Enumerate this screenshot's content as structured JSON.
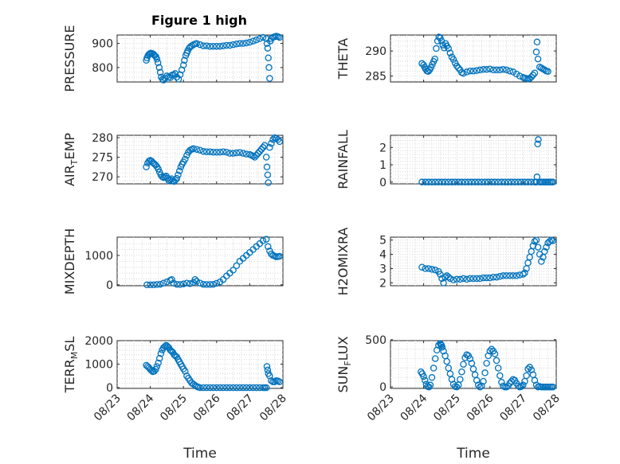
{
  "figure_title": "Figure 1 high",
  "chart_data": [
    {
      "type": "scatter",
      "title": "Figure 1 high",
      "ylabel": "PRESSURE",
      "xlabel": "",
      "xlim": [
        "08/23",
        "08/28"
      ],
      "ylim": [
        740,
        935
      ],
      "yticks": [
        "800",
        "900"
      ],
      "ytick_values": [
        800,
        900
      ],
      "xticks": [
        "08/23",
        "08/24",
        "08/25",
        "08/26",
        "08/27",
        "08/28"
      ],
      "show_xticklabels": false,
      "grid": true,
      "color": "#0072bd",
      "x": [
        23.88,
        23.9,
        23.93,
        23.96,
        23.99,
        24.02,
        24.06,
        24.1,
        24.13,
        24.17,
        24.2,
        24.23,
        24.27,
        24.3,
        24.33,
        24.37,
        24.4,
        24.45,
        24.5,
        24.55,
        24.6,
        24.65,
        24.7,
        24.75,
        24.8,
        24.85,
        24.9,
        24.95,
        25.0,
        25.03,
        25.07,
        25.1,
        25.13,
        25.17,
        25.2,
        25.25,
        25.3,
        25.35,
        25.4,
        25.5,
        25.6,
        25.7,
        25.8,
        25.9,
        26.0,
        26.1,
        26.2,
        26.3,
        26.4,
        26.5,
        26.6,
        26.7,
        26.8,
        26.9,
        27.0,
        27.1,
        27.2,
        27.3,
        27.4,
        27.5,
        27.52,
        27.54,
        27.56,
        27.58,
        27.6,
        27.62,
        27.65,
        27.7,
        27.75,
        27.8,
        27.85,
        27.9
      ],
      "y": [
        830,
        840,
        850,
        855,
        858,
        860,
        858,
        855,
        850,
        845,
        835,
        820,
        800,
        780,
        760,
        752,
        748,
        755,
        765,
        760,
        758,
        768,
        770,
        775,
        760,
        752,
        770,
        790,
        810,
        830,
        850,
        860,
        870,
        880,
        885,
        890,
        895,
        898,
        900,
        895,
        890,
        890,
        888,
        888,
        888,
        888,
        890,
        892,
        892,
        895,
        898,
        900,
        900,
        902,
        905,
        910,
        915,
        920,
        925,
        920,
        900,
        880,
        840,
        800,
        755,
        910,
        920,
        925,
        928,
        930,
        928,
        925
      ]
    },
    {
      "type": "scatter",
      "ylabel": "THETA",
      "xlabel": "",
      "xlim": [
        "08/23",
        "08/28"
      ],
      "ylim": [
        283.8,
        293.2
      ],
      "yticks": [
        "285",
        "290"
      ],
      "ytick_values": [
        285,
        290
      ],
      "xticks": [
        "08/23",
        "08/24",
        "08/25",
        "08/26",
        "08/27",
        "08/28"
      ],
      "show_xticklabels": false,
      "grid": true,
      "color": "#0072bd",
      "x": [
        23.95,
        24.0,
        24.03,
        24.06,
        24.1,
        24.14,
        24.18,
        24.22,
        24.26,
        24.3,
        24.34,
        24.38,
        24.42,
        24.46,
        24.5,
        24.54,
        24.58,
        24.62,
        24.66,
        24.7,
        24.75,
        24.8,
        24.85,
        24.9,
        24.95,
        25.0,
        25.05,
        25.1,
        25.15,
        25.2,
        25.3,
        25.4,
        25.5,
        25.6,
        25.7,
        25.8,
        25.9,
        26.0,
        26.1,
        26.2,
        26.3,
        26.4,
        26.5,
        26.6,
        26.7,
        26.8,
        26.9,
        27.0,
        27.05,
        27.1,
        27.15,
        27.2,
        27.25,
        27.3,
        27.35,
        27.4,
        27.42,
        27.45,
        27.5,
        27.55,
        27.6,
        27.65,
        27.7,
        27.75
      ],
      "y": [
        287.5,
        287.2,
        286.8,
        286.4,
        286.0,
        285.9,
        286.2,
        286.7,
        287.3,
        287.9,
        288.4,
        290.5,
        292.0,
        292.8,
        292.6,
        292.0,
        291.2,
        290.6,
        291.5,
        291.0,
        290.5,
        289.6,
        288.8,
        288.3,
        287.6,
        287.0,
        286.6,
        286.2,
        285.7,
        285.5,
        285.8,
        286.0,
        286.0,
        286.1,
        286.2,
        286.3,
        286.3,
        286.4,
        286.2,
        286.2,
        286.2,
        286.3,
        286.2,
        286.0,
        285.8,
        285.4,
        285.0,
        284.7,
        284.6,
        284.5,
        284.4,
        284.5,
        284.8,
        285.2,
        285.6,
        289.8,
        291.8,
        288.4,
        286.8,
        286.6,
        286.4,
        286.2,
        286.0,
        285.9
      ]
    },
    {
      "type": "scatter",
      "ylabel": "AIR_TEMP",
      "xlabel": "",
      "xlim": [
        "08/23",
        "08/28"
      ],
      "ylim": [
        268.2,
        280.6
      ],
      "yticks": [
        "270",
        "275",
        "280"
      ],
      "ytick_values": [
        270,
        275,
        280
      ],
      "xticks": [
        "08/23",
        "08/24",
        "08/25",
        "08/26",
        "08/27",
        "08/28"
      ],
      "show_xticklabels": false,
      "grid": true,
      "color": "#0072bd",
      "x": [
        23.88,
        23.92,
        23.96,
        24.0,
        24.04,
        24.08,
        24.12,
        24.16,
        24.2,
        24.24,
        24.28,
        24.32,
        24.36,
        24.4,
        24.44,
        24.48,
        24.52,
        24.56,
        24.6,
        24.64,
        24.68,
        24.72,
        24.76,
        24.8,
        24.84,
        24.88,
        24.92,
        24.96,
        25.0,
        25.05,
        25.1,
        25.15,
        25.2,
        25.25,
        25.3,
        25.4,
        25.5,
        25.6,
        25.7,
        25.8,
        25.9,
        26.0,
        26.1,
        26.2,
        26.3,
        26.4,
        26.5,
        26.6,
        26.7,
        26.8,
        26.9,
        27.0,
        27.05,
        27.1,
        27.15,
        27.2,
        27.25,
        27.3,
        27.35,
        27.4,
        27.45,
        27.5,
        27.52,
        27.54,
        27.56,
        27.6,
        27.65,
        27.7,
        27.75,
        27.8,
        27.85,
        27.9
      ],
      "y": [
        272.5,
        273.5,
        274.0,
        274.2,
        274.0,
        273.6,
        273.3,
        273.0,
        272.6,
        272.0,
        271.2,
        270.5,
        270.0,
        269.8,
        270.0,
        270.2,
        269.6,
        269.0,
        269.2,
        269.5,
        269.0,
        268.8,
        269.2,
        269.6,
        270.5,
        271.5,
        272.5,
        273.2,
        273.8,
        274.5,
        275.5,
        276.3,
        276.8,
        277.0,
        277.2,
        277.0,
        276.8,
        276.5,
        276.4,
        276.4,
        276.3,
        276.3,
        276.3,
        276.4,
        276.3,
        276.0,
        276.0,
        276.1,
        276.2,
        276.0,
        275.8,
        275.7,
        275.5,
        275.3,
        275.0,
        275.5,
        276.0,
        276.5,
        277.0,
        277.5,
        278.0,
        275.0,
        272.5,
        270.5,
        268.5,
        277.5,
        278.5,
        279.5,
        280.0,
        279.8,
        279.5,
        279.0
      ]
    },
    {
      "type": "scatter",
      "ylabel": "RAINFALL",
      "xlabel": "",
      "xlim": [
        "08/23",
        "08/28"
      ],
      "ylim": [
        -0.1,
        2.7
      ],
      "yticks": [
        "0",
        "1",
        "2"
      ],
      "ytick_values": [
        0,
        1,
        2
      ],
      "xticks": [
        "08/23",
        "08/24",
        "08/25",
        "08/26",
        "08/27",
        "08/28"
      ],
      "show_xticklabels": false,
      "grid": true,
      "color": "#0072bd",
      "x": [
        23.95,
        24.05,
        24.15,
        24.25,
        24.35,
        24.45,
        24.55,
        24.65,
        24.75,
        24.85,
        24.95,
        25.05,
        25.15,
        25.25,
        25.35,
        25.45,
        25.55,
        25.65,
        25.75,
        25.85,
        25.95,
        26.05,
        26.15,
        26.25,
        26.35,
        26.45,
        26.55,
        26.65,
        26.75,
        26.85,
        26.95,
        27.05,
        27.15,
        27.25,
        27.35,
        27.4,
        27.42,
        27.44,
        27.46,
        27.5,
        27.55,
        27.6,
        27.65,
        27.7,
        27.75,
        27.8,
        27.85,
        27.9
      ],
      "y": [
        0,
        0,
        0,
        0,
        0,
        0,
        0,
        0,
        0,
        0,
        0,
        0,
        0,
        0,
        0,
        0,
        0,
        0,
        0,
        0,
        0,
        0,
        0,
        0,
        0,
        0,
        0,
        0,
        0,
        0,
        0,
        0,
        0,
        0,
        0,
        0,
        0.3,
        2.2,
        2.45,
        0,
        0,
        0,
        0,
        0,
        0,
        0,
        0,
        0
      ]
    },
    {
      "type": "scatter",
      "ylabel": "MIXDEPTH",
      "xlabel": "",
      "xlim": [
        "08/23",
        "08/28"
      ],
      "ylim": [
        -30,
        1620
      ],
      "yticks": [
        "0",
        "1000"
      ],
      "ytick_values": [
        0,
        1000
      ],
      "xticks": [
        "08/23",
        "08/24",
        "08/25",
        "08/26",
        "08/27",
        "08/28"
      ],
      "show_xticklabels": false,
      "grid": true,
      "color": "#0072bd",
      "x": [
        23.9,
        24.0,
        24.1,
        24.2,
        24.3,
        24.4,
        24.5,
        24.6,
        24.65,
        24.7,
        24.8,
        24.9,
        25.0,
        25.1,
        25.2,
        25.3,
        25.35,
        25.4,
        25.5,
        25.6,
        25.7,
        25.8,
        25.9,
        26.0,
        26.1,
        26.2,
        26.3,
        26.4,
        26.5,
        26.6,
        26.7,
        26.8,
        26.9,
        27.0,
        27.1,
        27.2,
        27.3,
        27.4,
        27.5,
        27.55,
        27.6,
        27.65,
        27.7,
        27.75,
        27.8,
        27.85,
        27.9
      ],
      "y": [
        0,
        0,
        0,
        10,
        20,
        60,
        100,
        150,
        180,
        60,
        20,
        10,
        30,
        60,
        40,
        80,
        180,
        120,
        60,
        20,
        10,
        10,
        20,
        50,
        100,
        180,
        300,
        400,
        500,
        650,
        800,
        900,
        1000,
        1100,
        1200,
        1300,
        1400,
        1500,
        1550,
        1300,
        1150,
        1050,
        1000,
        980,
        950,
        960,
        970
      ]
    },
    {
      "type": "scatter",
      "ylabel": "H2OMIXRA",
      "xlabel": "",
      "xlim": [
        "08/23",
        "08/28"
      ],
      "ylim": [
        1.8,
        5.2
      ],
      "yticks": [
        "2",
        "3",
        "4",
        "5"
      ],
      "ytick_values": [
        2,
        3,
        4,
        5
      ],
      "xticks": [
        "08/23",
        "08/24",
        "08/25",
        "08/26",
        "08/27",
        "08/28"
      ],
      "show_xticklabels": false,
      "grid": true,
      "color": "#0072bd",
      "x": [
        23.95,
        24.05,
        24.15,
        24.25,
        24.35,
        24.45,
        24.5,
        24.55,
        24.6,
        24.65,
        24.7,
        24.75,
        24.8,
        24.9,
        25.0,
        25.1,
        25.2,
        25.3,
        25.4,
        25.5,
        25.6,
        25.7,
        25.8,
        25.9,
        26.0,
        26.1,
        26.2,
        26.3,
        26.4,
        26.5,
        26.6,
        26.7,
        26.8,
        26.9,
        27.0,
        27.05,
        27.1,
        27.15,
        27.2,
        27.25,
        27.3,
        27.35,
        27.4,
        27.45,
        27.5,
        27.55,
        27.6,
        27.65,
        27.7,
        27.75,
        27.8,
        27.85,
        27.9
      ],
      "y": [
        3.1,
        3.0,
        3.0,
        2.95,
        2.9,
        2.8,
        2.6,
        2.3,
        2.0,
        2.4,
        2.5,
        2.4,
        2.3,
        2.2,
        2.25,
        2.25,
        2.3,
        2.25,
        2.3,
        2.3,
        2.3,
        2.3,
        2.35,
        2.35,
        2.35,
        2.4,
        2.4,
        2.45,
        2.5,
        2.5,
        2.5,
        2.5,
        2.5,
        2.55,
        2.6,
        2.7,
        3.0,
        3.4,
        3.8,
        4.2,
        4.6,
        4.9,
        5.0,
        4.5,
        4.0,
        3.5,
        3.8,
        4.2,
        4.5,
        4.8,
        4.9,
        5.0,
        4.95
      ]
    },
    {
      "type": "scatter",
      "ylabel": "TERR_MSL",
      "xlabel": "Time",
      "xlim": [
        "08/23",
        "08/28"
      ],
      "ylim": [
        -30,
        2000
      ],
      "yticks": [
        "0",
        "1000",
        "2000"
      ],
      "ytick_values": [
        0,
        1000,
        2000
      ],
      "xticks": [
        "08/23",
        "08/24",
        "08/25",
        "08/26",
        "08/27",
        "08/28"
      ],
      "show_xticklabels": true,
      "grid": true,
      "color": "#0072bd",
      "x": [
        23.88,
        23.92,
        23.96,
        24.0,
        24.04,
        24.08,
        24.12,
        24.16,
        24.2,
        24.24,
        24.28,
        24.32,
        24.36,
        24.4,
        24.44,
        24.48,
        24.52,
        24.56,
        24.6,
        24.64,
        24.68,
        24.72,
        24.76,
        24.8,
        24.84,
        24.88,
        24.92,
        24.96,
        25.0,
        25.05,
        25.1,
        25.15,
        25.2,
        25.25,
        25.3,
        25.35,
        25.4,
        25.45,
        25.5,
        25.6,
        25.7,
        25.8,
        25.9,
        26.0,
        26.1,
        26.2,
        26.3,
        26.4,
        26.5,
        26.6,
        26.7,
        26.8,
        26.9,
        27.0,
        27.1,
        27.2,
        27.3,
        27.4,
        27.45,
        27.5,
        27.52,
        27.54,
        27.56,
        27.6,
        27.65,
        27.7,
        27.75,
        27.8,
        27.85,
        27.9
      ],
      "y": [
        950,
        900,
        850,
        780,
        720,
        680,
        700,
        780,
        900,
        1050,
        1250,
        1450,
        1600,
        1700,
        1750,
        1800,
        1750,
        1700,
        1600,
        1550,
        1500,
        1400,
        1350,
        1300,
        1200,
        1100,
        1000,
        900,
        800,
        700,
        500,
        400,
        300,
        200,
        150,
        100,
        50,
        20,
        0,
        0,
        0,
        0,
        0,
        0,
        0,
        0,
        0,
        0,
        0,
        0,
        0,
        0,
        0,
        0,
        0,
        0,
        0,
        0,
        0,
        0,
        900,
        750,
        600,
        500,
        300,
        250,
        250,
        300,
        280,
        250
      ]
    },
    {
      "type": "scatter",
      "ylabel": "SUN_FLUX",
      "xlabel": "Time",
      "xlim": [
        "08/23",
        "08/28"
      ],
      "ylim": [
        -15,
        490
      ],
      "yticks": [
        "0",
        "500"
      ],
      "ytick_values": [
        0,
        500
      ],
      "xticks": [
        "08/23",
        "08/24",
        "08/25",
        "08/26",
        "08/27",
        "08/28"
      ],
      "show_xticklabels": true,
      "grid": true,
      "color": "#0072bd",
      "x": [
        23.92,
        23.96,
        24.0,
        24.04,
        24.08,
        24.12,
        24.16,
        24.2,
        24.25,
        24.3,
        24.35,
        24.4,
        24.45,
        24.5,
        24.52,
        24.54,
        24.56,
        24.6,
        24.65,
        24.7,
        24.75,
        24.8,
        24.85,
        24.9,
        24.95,
        25.0,
        25.05,
        25.1,
        25.15,
        25.2,
        25.25,
        25.3,
        25.35,
        25.4,
        25.45,
        25.5,
        25.55,
        25.6,
        25.65,
        25.7,
        25.75,
        25.8,
        25.85,
        25.9,
        25.95,
        26.0,
        26.05,
        26.1,
        26.15,
        26.2,
        26.25,
        26.3,
        26.35,
        26.4,
        26.45,
        26.5,
        26.55,
        26.6,
        26.65,
        26.7,
        26.75,
        26.8,
        26.85,
        26.9,
        26.95,
        27.0,
        27.05,
        27.1,
        27.15,
        27.2,
        27.25,
        27.3,
        27.35,
        27.4,
        27.45,
        27.5,
        27.55,
        27.6,
        27.65,
        27.7,
        27.75,
        27.8,
        27.85,
        27.9
      ],
      "y": [
        160,
        140,
        110,
        70,
        30,
        5,
        0,
        20,
        100,
        200,
        300,
        390,
        440,
        460,
        450,
        440,
        420,
        380,
        330,
        270,
        200,
        140,
        80,
        30,
        5,
        0,
        20,
        80,
        160,
        240,
        310,
        340,
        330,
        300,
        250,
        190,
        130,
        70,
        20,
        0,
        10,
        60,
        150,
        250,
        330,
        380,
        400,
        380,
        350,
        280,
        200,
        120,
        50,
        10,
        0,
        0,
        10,
        40,
        60,
        80,
        70,
        40,
        10,
        0,
        5,
        20,
        60,
        120,
        190,
        210,
        180,
        130,
        70,
        20,
        0,
        5,
        0,
        0,
        0,
        0,
        0,
        0,
        0,
        0
      ]
    }
  ]
}
